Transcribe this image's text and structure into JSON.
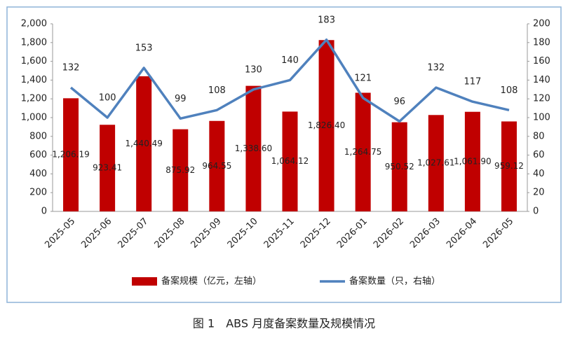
{
  "chart_data": {
    "type": "bar",
    "caption": "图 1　ABS 月度备案数量及规模情况",
    "categories": [
      "2025-05",
      "2025-06",
      "2025-07",
      "2025-08",
      "2025-09",
      "2025-10",
      "2025-11",
      "2025-12",
      "2026-01",
      "2026-02",
      "2026-03",
      "2026-04",
      "2026-05"
    ],
    "series": [
      {
        "name": "备案规模（亿元，左轴）",
        "type": "bar",
        "color": "#c00000",
        "values": [
          1206.19,
          923.41,
          1440.49,
          875.92,
          964.55,
          1338.6,
          1064.12,
          1826.4,
          1264.75,
          950.52,
          1027.61,
          1061.9,
          959.12
        ],
        "value_labels": [
          "1,206.19",
          "923.41",
          "1,440.49",
          "875.92",
          "964.55",
          "1,338.60",
          "1,064.12",
          "1,826.40",
          "1,264.75",
          "950.52",
          "1,027.61",
          "1,061.90",
          "959.12"
        ]
      },
      {
        "name": "备案数量（只，右轴）",
        "type": "line",
        "axis": "y2",
        "color": "#4f81bd",
        "values": [
          132,
          100,
          153,
          99,
          108,
          130,
          140,
          183,
          121,
          96,
          132,
          117,
          108
        ]
      }
    ],
    "ylim": [
      0,
      2000
    ],
    "yticks": [
      0,
      200,
      400,
      600,
      800,
      {
        "value": 1000,
        "label": "1,000"
      },
      {
        "value": 1200,
        "label": "1,200"
      },
      {
        "value": 1400,
        "label": "1,400"
      },
      {
        "value": 1600,
        "label": "1,600"
      },
      {
        "value": 1800,
        "label": "1,800"
      },
      {
        "value": 2000,
        "label": "2,000"
      }
    ],
    "y2lim": [
      0,
      200
    ],
    "y2ticks": [
      0,
      20,
      40,
      60,
      80,
      100,
      120,
      140,
      160,
      180,
      200
    ],
    "legend": "bottom"
  }
}
